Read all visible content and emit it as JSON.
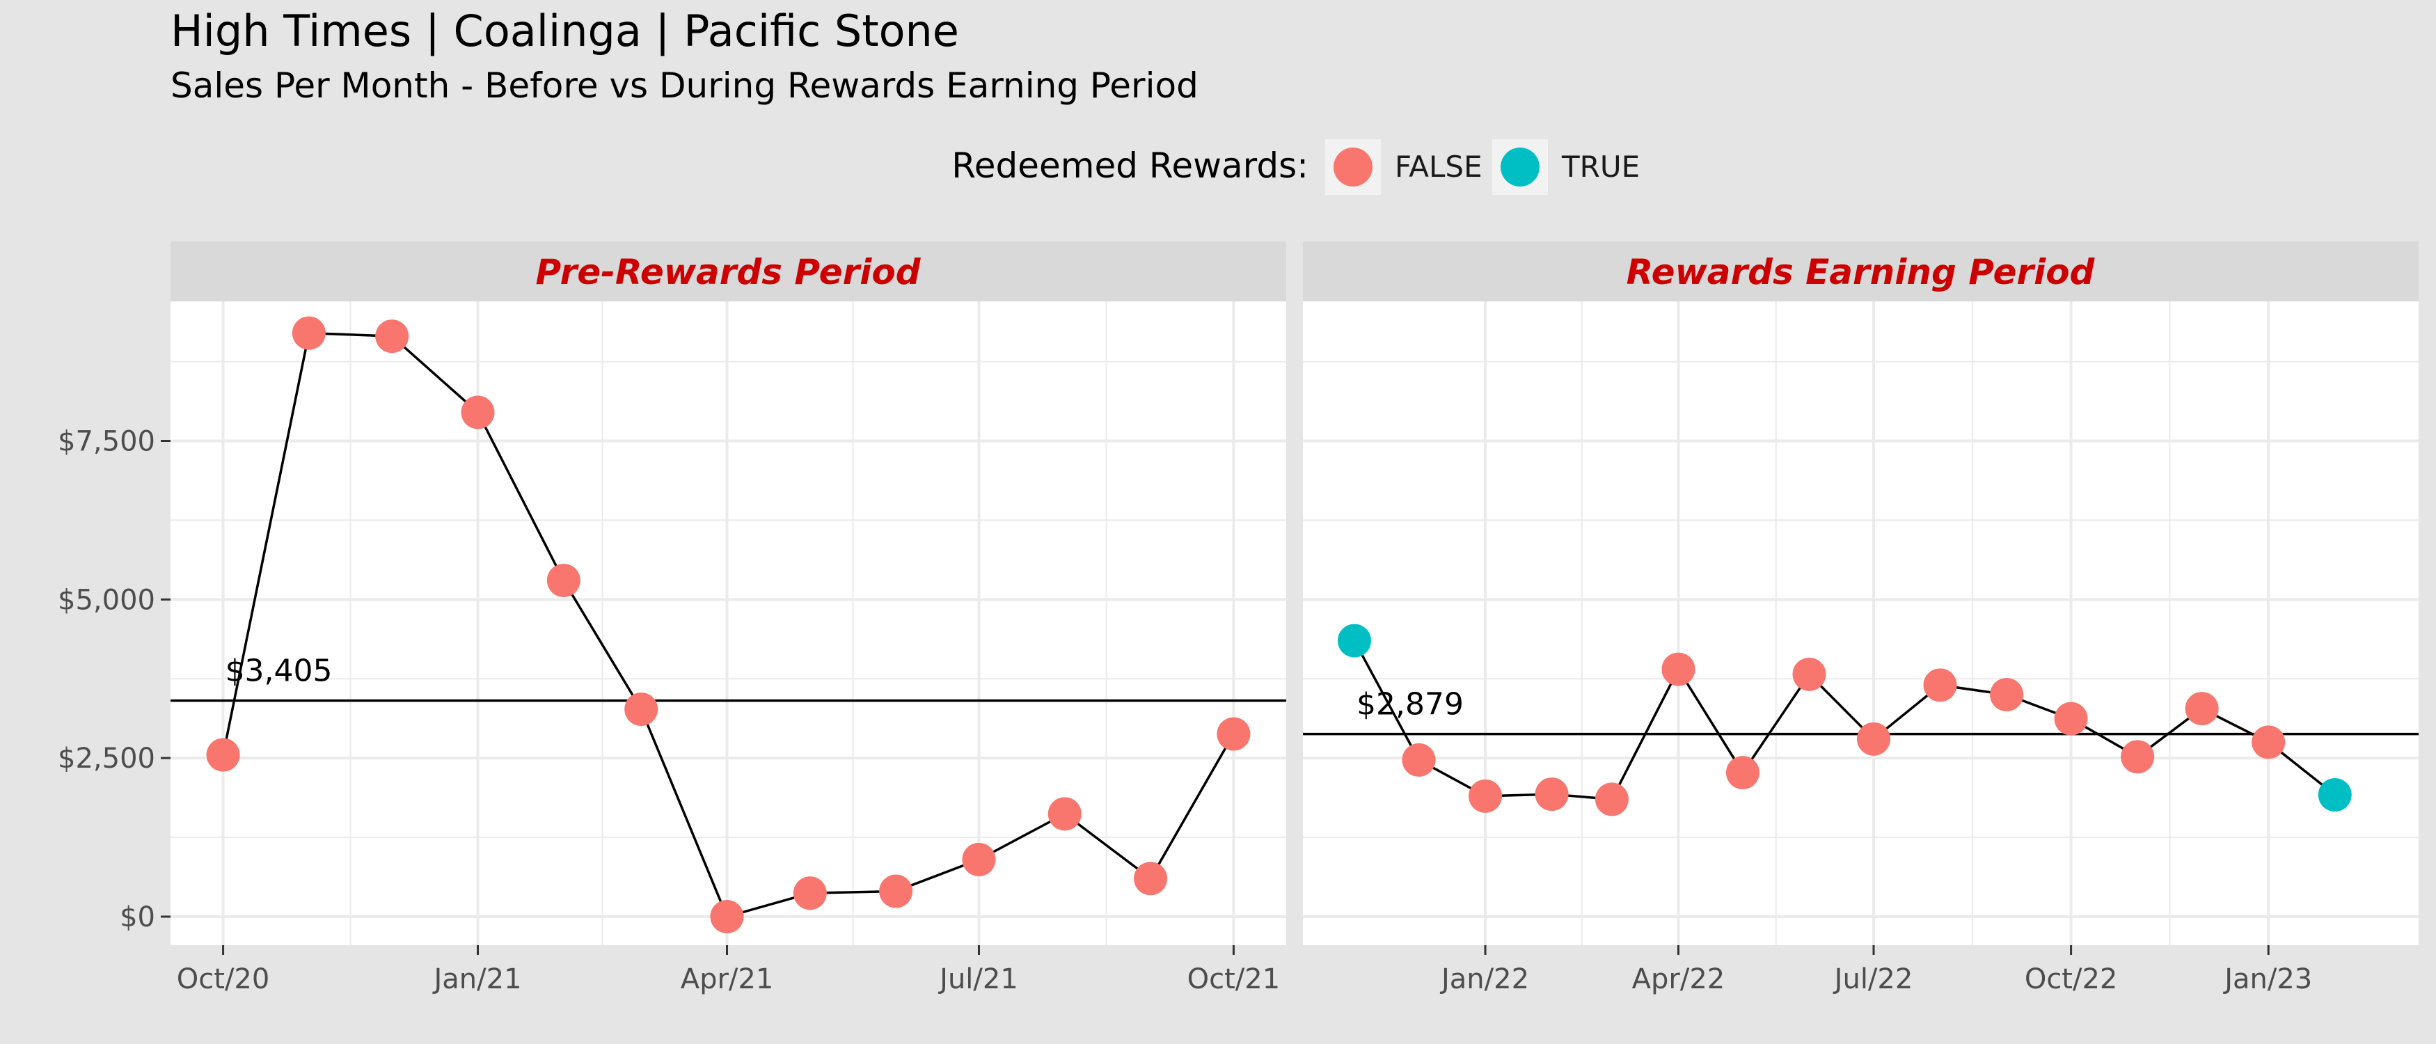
{
  "title": "High Times | Coalinga | Pacific Stone",
  "subtitle": "Sales Per Month - Before vs During Rewards Earning Period",
  "colors": {
    "background": "#E5E5E5",
    "panel": "#FFFFFF",
    "strip": "#D9D9D9",
    "strip_text": "#CC0000",
    "false_point": "#F8766D",
    "true_point": "#00BFC4",
    "line": "#000000",
    "grid": "#EBEBEB"
  },
  "legend": {
    "title": "Redeemed Rewards:",
    "position": "top",
    "items": [
      {
        "label": "FALSE",
        "color": "#F8766D"
      },
      {
        "label": "TRUE",
        "color": "#00BFC4"
      }
    ]
  },
  "chart_data": [
    {
      "type": "line",
      "panel": "Pre-Rewards Period",
      "x_tick_labels": [
        "Oct/20",
        "Jan/21",
        "Apr/21",
        "Jul/21",
        "Oct/21"
      ],
      "x_tick_dates": [
        "2020-10-01",
        "2021-01-01",
        "2021-04-01",
        "2021-07-01",
        "2021-10-01"
      ],
      "xlim": [
        "2020-09-12",
        "2021-10-20"
      ],
      "y_tick_labels": [
        "$0",
        "$2,500",
        "$5,000",
        "$7,500"
      ],
      "y_tick_values": [
        0,
        2500,
        5000,
        7500
      ],
      "ylim": [
        -450,
        9700
      ],
      "mean_value": 3405,
      "mean_label": "$3,405",
      "points": [
        {
          "x": "2020-10-01",
          "y": 2550,
          "redeemed": false
        },
        {
          "x": "2020-11-01",
          "y": 9200,
          "redeemed": false
        },
        {
          "x": "2020-12-01",
          "y": 9150,
          "redeemed": false
        },
        {
          "x": "2021-01-01",
          "y": 7950,
          "redeemed": false
        },
        {
          "x": "2021-02-01",
          "y": 5300,
          "redeemed": false
        },
        {
          "x": "2021-03-01",
          "y": 3270,
          "redeemed": false
        },
        {
          "x": "2021-04-01",
          "y": 0,
          "redeemed": false
        },
        {
          "x": "2021-05-01",
          "y": 370,
          "redeemed": false
        },
        {
          "x": "2021-06-01",
          "y": 400,
          "redeemed": false
        },
        {
          "x": "2021-07-01",
          "y": 900,
          "redeemed": false
        },
        {
          "x": "2021-08-01",
          "y": 1620,
          "redeemed": false
        },
        {
          "x": "2021-09-01",
          "y": 600,
          "redeemed": false
        },
        {
          "x": "2021-10-01",
          "y": 2880,
          "redeemed": false
        }
      ]
    },
    {
      "type": "line",
      "panel": "Rewards Earning Period",
      "x_tick_labels": [
        "Jan/22",
        "Apr/22",
        "Jul/22",
        "Oct/22",
        "Jan/23"
      ],
      "x_tick_dates": [
        "2022-01-01",
        "2022-04-01",
        "2022-07-01",
        "2022-10-01",
        "2023-01-01"
      ],
      "xlim": [
        "2021-10-08",
        "2023-03-12"
      ],
      "y_tick_values": [
        0,
        2500,
        5000,
        7500
      ],
      "ylim": [
        -450,
        9700
      ],
      "mean_value": 2879,
      "mean_label": "$2,879",
      "points": [
        {
          "x": "2021-11-01",
          "y": 4350,
          "redeemed": true
        },
        {
          "x": "2021-12-01",
          "y": 2470,
          "redeemed": false
        },
        {
          "x": "2022-01-01",
          "y": 1900,
          "redeemed": false
        },
        {
          "x": "2022-02-01",
          "y": 1930,
          "redeemed": false
        },
        {
          "x": "2022-03-01",
          "y": 1850,
          "redeemed": false
        },
        {
          "x": "2022-04-01",
          "y": 3900,
          "redeemed": false
        },
        {
          "x": "2022-05-01",
          "y": 2270,
          "redeemed": false
        },
        {
          "x": "2022-06-01",
          "y": 3820,
          "redeemed": false
        },
        {
          "x": "2022-07-01",
          "y": 2800,
          "redeemed": false
        },
        {
          "x": "2022-08-01",
          "y": 3650,
          "redeemed": false
        },
        {
          "x": "2022-09-01",
          "y": 3500,
          "redeemed": false
        },
        {
          "x": "2022-10-01",
          "y": 3120,
          "redeemed": false
        },
        {
          "x": "2022-11-01",
          "y": 2520,
          "redeemed": false
        },
        {
          "x": "2022-12-01",
          "y": 3280,
          "redeemed": false
        },
        {
          "x": "2023-01-01",
          "y": 2750,
          "redeemed": false
        },
        {
          "x": "2023-02-01",
          "y": 1920,
          "redeemed": true
        }
      ]
    }
  ]
}
